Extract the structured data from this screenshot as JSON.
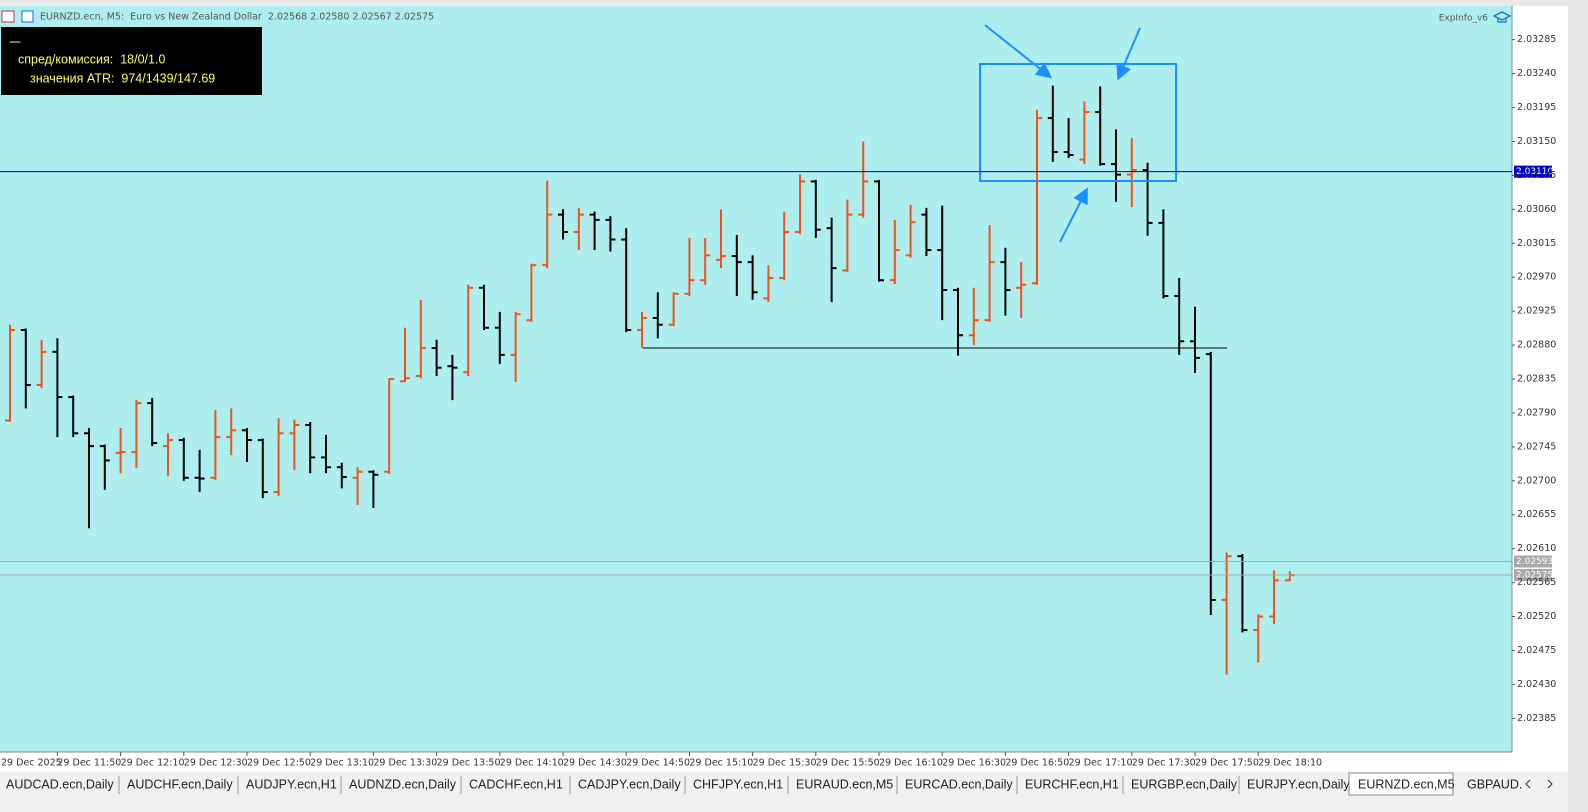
{
  "header": {
    "symbol_line": "EURNZD.ecn, M5:  Euro vs New Zealand Dollar  2.02568 2.02580 2.02567 2.02575",
    "indicator": "ExpInfo_v6"
  },
  "info_box": {
    "marker": "—",
    "spread": "спред/комиссия:  18/0/1.0",
    "atr": "значения ATR:  974/1439/147.69"
  },
  "chart_data": {
    "type": "ohlc",
    "up_color": "#f0531c",
    "down_color": "#000000",
    "date_label": "29 Dec 2025",
    "categories": [
      null,
      null,
      null,
      "29 Dec 11:50",
      null,
      null,
      null,
      "29 Dec 12:10",
      null,
      null,
      null,
      "29 Dec 12:30",
      null,
      null,
      null,
      "29 Dec 12:50",
      null,
      null,
      null,
      "29 Dec 13:10",
      null,
      null,
      null,
      "29 Dec 13:30",
      null,
      null,
      null,
      "29 Dec 13:50",
      null,
      null,
      null,
      "29 Dec 14:10",
      null,
      null,
      null,
      "29 Dec 14:30",
      null,
      null,
      null,
      "29 Dec 14:50",
      null,
      null,
      null,
      "29 Dec 15:10",
      null,
      null,
      null,
      "29 Dec 15:30",
      null,
      null,
      null,
      "29 Dec 15:50",
      null,
      null,
      null,
      "29 Dec 16:10",
      null,
      null,
      null,
      "29 Dec 16:30",
      null,
      null,
      null,
      "29 Dec 16:50",
      null,
      null,
      null,
      "29 Dec 17:10",
      null,
      null,
      null,
      "29 Dec 17:30",
      null,
      null,
      null,
      "29 Dec 17:50",
      null,
      null,
      null,
      "29 Dec 18:10",
      null,
      null
    ],
    "open": [
      2.0278,
      2.029,
      2.02827,
      2.02871,
      2.02811,
      2.02763,
      2.02746,
      2.02737,
      2.02738,
      2.02803,
      2.02746,
      2.02754,
      2.02704,
      2.02704,
      2.02758,
      2.02767,
      2.02754,
      2.02685,
      2.02763,
      2.02774,
      2.02731,
      2.02718,
      2.02704,
      2.02712,
      2.02712,
      2.02832,
      2.02839,
      2.02876,
      2.02852,
      2.02844,
      2.02956,
      2.02903,
      2.02867,
      2.02913,
      2.02986,
      2.03053,
      2.0303,
      2.03053,
      2.03046,
      2.0302,
      2.029,
      2.02916,
      2.02907,
      2.02948,
      2.02966,
      2.02993,
      2.02998,
      2.0299,
      2.02942,
      2.02969,
      2.0303,
      2.03097,
      2.03035,
      2.02979,
      2.03053,
      2.03097,
      2.02966,
      2.02999,
      2.03053,
      2.03006,
      2.02953,
      2.02893,
      2.02913,
      2.0299,
      2.02956,
      2.02962,
      2.03181,
      2.03136,
      2.03126,
      2.03189,
      2.0312,
      2.03106,
      2.03112,
      2.03042,
      2.02945,
      2.02885,
      2.02868,
      2.02542,
      2.026,
      2.02502,
      2.0252,
      2.02568
    ],
    "high": [
      2.02907,
      2.02902,
      2.02887,
      2.02889,
      2.02813,
      2.0277,
      2.02748,
      2.0277,
      2.02807,
      2.0281,
      2.02763,
      2.02757,
      2.02741,
      2.02794,
      2.02796,
      2.0277,
      2.02756,
      2.02783,
      2.02781,
      2.02778,
      2.02761,
      2.02724,
      2.02718,
      2.02714,
      2.02836,
      2.02903,
      2.0294,
      2.02887,
      2.02867,
      2.0296,
      2.0296,
      2.02924,
      2.02924,
      2.02988,
      2.03098,
      2.0306,
      2.03062,
      2.03057,
      2.03051,
      2.03035,
      2.02924,
      2.0295,
      2.0295,
      2.03022,
      2.03022,
      2.0306,
      2.03026,
      2.02999,
      2.02986,
      2.03057,
      2.03106,
      2.03099,
      2.03049,
      2.03073,
      2.0315,
      2.03099,
      2.03046,
      2.03066,
      2.03062,
      2.03065,
      2.02956,
      2.02956,
      2.03039,
      2.03009,
      2.0299,
      2.03192,
      2.03224,
      2.03181,
      2.03203,
      2.03223,
      2.03166,
      2.03155,
      2.03122,
      2.0306,
      2.02969,
      2.02931,
      2.02871,
      2.02605,
      2.02603,
      2.02523,
      2.02581,
      2.0258
    ],
    "low": [
      2.02778,
      2.02796,
      2.02823,
      2.02758,
      2.02758,
      2.02637,
      2.02688,
      2.0271,
      2.02717,
      2.02746,
      2.02706,
      2.027,
      2.02685,
      2.02701,
      2.02734,
      2.02725,
      2.02677,
      2.0268,
      2.02714,
      2.0271,
      2.0271,
      2.0269,
      2.02668,
      2.02664,
      2.02709,
      2.02831,
      2.02836,
      2.02839,
      2.02807,
      2.02839,
      2.029,
      2.02855,
      2.02831,
      2.02911,
      2.02982,
      2.0302,
      2.03006,
      2.03006,
      2.03004,
      2.02897,
      2.02876,
      2.02889,
      2.02905,
      2.02945,
      2.0296,
      2.02982,
      2.02945,
      2.0294,
      2.02937,
      2.02966,
      2.03027,
      2.03022,
      2.02937,
      2.02977,
      2.03049,
      2.02964,
      2.02961,
      2.02996,
      2.02998,
      2.02913,
      2.02866,
      2.0288,
      2.02911,
      2.02919,
      2.02916,
      2.0296,
      2.03123,
      2.03128,
      2.0312,
      2.03118,
      2.0307,
      2.03063,
      2.03025,
      2.02942,
      2.02867,
      2.02843,
      2.02522,
      2.02443,
      2.02499,
      2.02459,
      2.0251,
      2.02567
    ],
    "close": [
      2.029,
      2.02827,
      2.02871,
      2.02811,
      2.02763,
      2.02746,
      2.02727,
      2.02738,
      2.02803,
      2.0275,
      2.02754,
      2.02704,
      2.02703,
      2.02758,
      2.02767,
      2.02754,
      2.02685,
      2.02763,
      2.02774,
      2.02731,
      2.02718,
      2.02705,
      2.02712,
      2.02708,
      2.02835,
      2.02836,
      2.02876,
      2.0285,
      2.0285,
      2.02956,
      2.02903,
      2.02867,
      2.02921,
      2.02986,
      2.03053,
      2.0303,
      2.03053,
      2.03046,
      2.0302,
      2.029,
      2.02916,
      2.02907,
      2.02948,
      2.02966,
      2.02999,
      2.02998,
      2.0299,
      2.0295,
      2.02969,
      2.0303,
      2.03097,
      2.03033,
      2.02982,
      2.03053,
      2.03097,
      2.02966,
      2.03006,
      2.03043,
      2.03006,
      2.02953,
      2.02893,
      2.02913,
      2.0299,
      2.02953,
      2.0296,
      2.03181,
      2.03136,
      2.03132,
      2.03189,
      2.0312,
      2.03106,
      2.03112,
      2.03042,
      2.02945,
      2.02885,
      2.02863,
      2.02542,
      2.026,
      2.02502,
      2.0252,
      2.02568,
      2.02575
    ],
    "ylim": [
      2.02343,
      2.03327
    ],
    "yticks": [
      2.03285,
      {
        "value": 2.0324,
        "label": "2.03240"
      },
      2.03195,
      {
        "value": 2.0315,
        "label": "2.03150"
      },
      2.03105,
      {
        "value": 2.0306,
        "label": "2.03060"
      },
      2.03015,
      {
        "value": 2.0297,
        "label": "2.02970"
      },
      2.02925,
      {
        "value": 2.0288,
        "label": "2.02880"
      },
      2.02835,
      {
        "value": 2.0279,
        "label": "2.02790"
      },
      2.02745,
      {
        "value": 2.027,
        "label": "2.02700"
      },
      2.02655,
      {
        "value": 2.0261,
        "label": "2.02610"
      },
      2.02565,
      {
        "value": 2.0252,
        "label": "2.02520"
      },
      2.02475,
      {
        "value": 2.0243,
        "label": "2.02430"
      },
      2.02385
    ],
    "price_lines": [
      {
        "value": 2.0311,
        "label": "2.03110",
        "color": "#0000cc"
      },
      {
        "value": 2.02593,
        "label": "2.02593",
        "color": "#a8a8a8"
      },
      {
        "value": 2.02575,
        "label": "2.02575",
        "color": "#a8a8a8"
      }
    ]
  },
  "tabs": [
    {
      "label": "AUDCAD.ecn,Daily",
      "active": false
    },
    {
      "label": "AUDCHF.ecn,Daily",
      "active": false
    },
    {
      "label": "AUDJPY.ecn,H1",
      "active": false
    },
    {
      "label": "AUDNZD.ecn,Daily",
      "active": false
    },
    {
      "label": "CADCHF.ecn,H1",
      "active": false
    },
    {
      "label": "CADJPY.ecn,Daily",
      "active": false
    },
    {
      "label": "CHFJPY.ecn,H1",
      "active": false
    },
    {
      "label": "EURAUD.ecn,M5",
      "active": false
    },
    {
      "label": "EURCAD.ecn,Daily",
      "active": false
    },
    {
      "label": "EURCHF.ecn,H1",
      "active": false
    },
    {
      "label": "EURGBP.ecn,Daily",
      "active": false
    },
    {
      "label": "EURJPY.ecn,Daily",
      "active": false
    },
    {
      "label": "EURNZD.ecn,M5",
      "active": true
    },
    {
      "label": "GBPAUD.",
      "active": false
    }
  ]
}
